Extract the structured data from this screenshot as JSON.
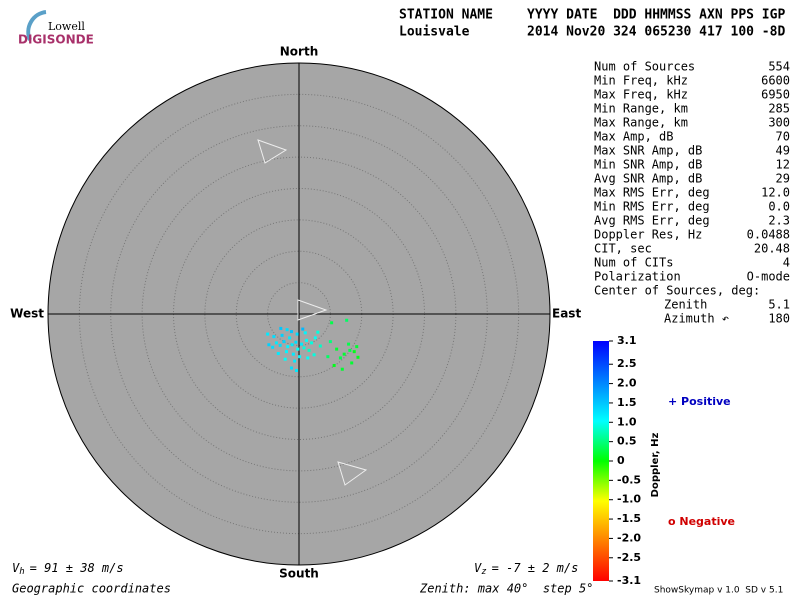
{
  "header": {
    "logo_top": "Lowell",
    "logo_bottom": "DIGISONDE",
    "station_label": "STATION NAME",
    "station": "Louisvale",
    "date_label": "YYYY DATE  DDD HHMMSS AXN PPS IGP",
    "date": "2014 Nov20 324 065230 417 100 -8D"
  },
  "skymap": {
    "north": "North",
    "south": "South",
    "east": "East",
    "west": "West",
    "zenith_max": 40,
    "zenith_step": 5,
    "sources": [
      [
        -1.1,
        -4.9,
        1.2
      ],
      [
        -0.5,
        -4.5,
        1.3
      ],
      [
        -1.8,
        -5.2,
        1.1
      ],
      [
        -2.4,
        -4.4,
        1.4
      ],
      [
        -0.2,
        -5.6,
        1.0
      ],
      [
        0.4,
        -4.8,
        1.2
      ],
      [
        -3.0,
        -5.0,
        1.3
      ],
      [
        -1.5,
        -3.8,
        1.2
      ],
      [
        -2.0,
        -6.0,
        1.1
      ],
      [
        0.8,
        -5.4,
        0.9
      ],
      [
        1.2,
        -4.2,
        1.0
      ],
      [
        -3.6,
        -4.6,
        1.2
      ],
      [
        -4.2,
        -5.3,
        1.3
      ],
      [
        -2.7,
        -3.4,
        1.4
      ],
      [
        -0.9,
        -6.4,
        1.2
      ],
      [
        1.6,
        -5.8,
        0.8
      ],
      [
        2.0,
        -4.6,
        0.9
      ],
      [
        -1.2,
        -2.8,
        1.5
      ],
      [
        -4.8,
        -4.9,
        1.4
      ],
      [
        2.6,
        -3.8,
        1.0
      ],
      [
        -0.3,
        -3.2,
        1.3
      ],
      [
        0.1,
        -6.8,
        1.1
      ],
      [
        -2.2,
        -7.2,
        1.0
      ],
      [
        3.4,
        -5.1,
        0.8
      ],
      [
        1.0,
        -3.0,
        1.1
      ],
      [
        -3.3,
        -6.3,
        1.2
      ],
      [
        -1.9,
        -2.5,
        1.3
      ],
      [
        2.4,
        -6.5,
        0.9
      ],
      [
        -0.7,
        -7.5,
        1.2
      ],
      [
        0.6,
        -2.4,
        1.6
      ],
      [
        -4.0,
        -3.6,
        1.3
      ],
      [
        3.0,
        -2.9,
        0.9
      ],
      [
        -2.9,
        -2.3,
        1.5
      ],
      [
        1.4,
        -7.0,
        1.0
      ],
      [
        -5.0,
        -3.2,
        1.2
      ],
      [
        -1.2,
        -8.6,
        1.3
      ],
      [
        -0.4,
        -9.0,
        1.2
      ],
      [
        5.2,
        -1.4,
        0.3
      ],
      [
        7.6,
        -1.0,
        0.4
      ],
      [
        6.0,
        -5.6,
        0.2
      ],
      [
        7.2,
        -6.4,
        0.2
      ],
      [
        8.1,
        -5.8,
        0.3
      ],
      [
        8.8,
        -6.0,
        0.1
      ],
      [
        9.2,
        -5.2,
        0.2
      ],
      [
        6.6,
        -7.0,
        0.3
      ],
      [
        5.6,
        -8.2,
        0.1
      ],
      [
        8.4,
        -7.8,
        0.2
      ],
      [
        4.6,
        -6.8,
        0.4
      ],
      [
        7.9,
        -4.8,
        0.3
      ],
      [
        6.9,
        -8.8,
        0.2
      ],
      [
        5.0,
        -4.4,
        0.5
      ],
      [
        9.4,
        -6.9,
        0.1
      ]
    ],
    "vh": {
      "symbol": "V",
      "sub": "h",
      "text": "= 91 ± 38 m/s"
    },
    "vz": {
      "symbol": "V",
      "sub": "z",
      "text": "= -7 ± 2 m/s"
    },
    "coords": "Geographic coordinates",
    "zenith_note": "Zenith: max 40°  step 5°"
  },
  "stats": {
    "rows": [
      [
        "Num of Sources",
        "554"
      ],
      [
        "Min Freq, kHz",
        "6600"
      ],
      [
        "Max Freq, kHz",
        "6950"
      ],
      [
        "Min Range, km",
        "285"
      ],
      [
        "Max Range, km",
        "300"
      ],
      [
        "Max Amp, dB",
        "70"
      ],
      [
        "Max SNR Amp, dB",
        "49"
      ],
      [
        "Min SNR Amp, dB",
        "12"
      ],
      [
        "Avg SNR Amp, dB",
        "29"
      ],
      [
        "Max RMS Err, deg",
        "12.0"
      ],
      [
        "Min RMS Err, deg",
        "0.0"
      ],
      [
        "Avg RMS Err, deg",
        "2.3"
      ],
      [
        "Doppler Res, Hz",
        "0.0488"
      ],
      [
        "CIT, sec",
        "20.48"
      ],
      [
        "Num of CITs",
        "4"
      ],
      [
        "Polarization",
        "O-mode"
      ]
    ],
    "center_title": "Center of Sources, deg:",
    "center_rows": [
      [
        "Zenith",
        "5.1"
      ],
      [
        "Azimuth ↶",
        "180"
      ]
    ]
  },
  "doppler_scale": {
    "label": "Doppler, Hz",
    "lim": [
      -3.1,
      3.1
    ],
    "ticks": [
      3.1,
      2.5,
      {
        "value": 2,
        "label": "2.0"
      },
      1.5,
      {
        "value": 1,
        "label": "1.0"
      },
      0.5,
      0,
      -0.5,
      {
        "value": -1,
        "label": "-1.0"
      },
      -1.5,
      {
        "value": -2,
        "label": "-2.0"
      },
      -2.5,
      -3.1
    ],
    "colormap": [
      "#ff0000",
      "#ff8000",
      "#ffff00",
      "#00ff00",
      "#00ffff",
      "#0080ff",
      "#0000ff"
    ],
    "positive": "+ Positive",
    "negative": "o Negative"
  },
  "footer": "ShowSkymap v 1.0  SD v 5.1"
}
